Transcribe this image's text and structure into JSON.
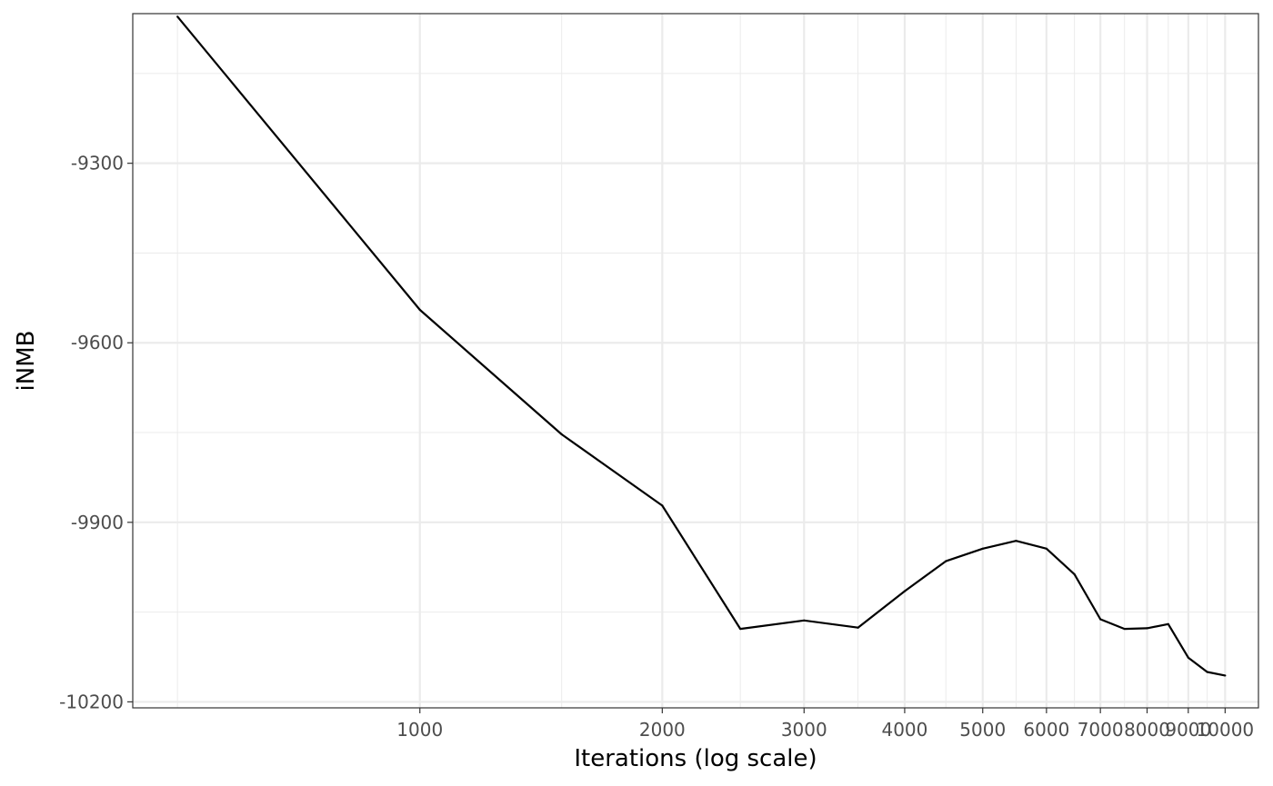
{
  "chart_data": {
    "type": "line",
    "title": "",
    "xlabel": "Iterations (log scale)",
    "ylabel": "iNMB",
    "x_scale": "log",
    "xlim": [
      440,
      11000
    ],
    "ylim": [
      -10210,
      -9050
    ],
    "grid": true,
    "x_ticks": [
      1000,
      2000,
      3000,
      4000,
      5000,
      6000,
      7000,
      8000,
      9000,
      10000
    ],
    "x_tick_labels": [
      "1000",
      "2000",
      "3000",
      "4000",
      "5000",
      "6000",
      "7000",
      "8000",
      "9000",
      "10000"
    ],
    "x_minor_grid": [
      500,
      1500,
      2500,
      3500,
      4500,
      5500,
      6500,
      7500,
      8500,
      9500
    ],
    "y_ticks": [
      -9300,
      -9600,
      -9900,
      -10200
    ],
    "y_tick_labels": [
      "-9300",
      "-9600",
      "-9900",
      "-10200"
    ],
    "y_minor_grid": [
      -9150,
      -9450,
      -9750,
      -10050
    ],
    "series": [
      {
        "color": "#000000",
        "x": [
          500,
          1000,
          1500,
          2000,
          2500,
          3000,
          3500,
          4000,
          4500,
          5000,
          5500,
          6000,
          6500,
          7000,
          7500,
          8000,
          8500,
          9000,
          9500,
          10000
        ],
        "y": [
          -9055,
          -9545,
          -9753,
          -9872,
          -10078,
          -10064,
          -10076,
          -10015,
          -9965,
          -9944,
          -9931,
          -9944,
          -9987,
          -10062,
          -10078,
          -10077,
          -10070,
          -10126,
          -10150,
          -10156
        ]
      }
    ]
  }
}
